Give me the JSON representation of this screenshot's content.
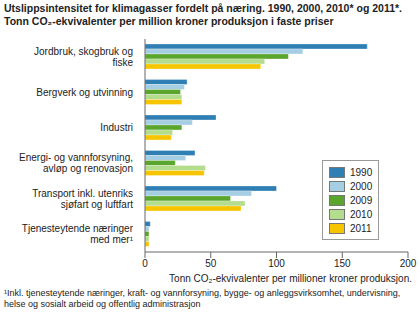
{
  "chart_data": {
    "type": "bar",
    "orientation": "horizontal",
    "title": "Utslippsintensitet for klimagasser fordelt på næring. 1990, 2000, 2010* og 2011*. Tonn CO₂-ekvivalenter per million kroner produksjon i faste priser",
    "x_label": "Tonn CO₂-ekvivalenter per millioner kroner produksjon.",
    "footnote": "¹Inkl. tjenesteytende næringer, kraft- og vannforsyning, bygge- og anleggsvirksomhet, undervisning, helse og sosialt arbeid og offentlig administrasjon",
    "categories": [
      "Jordbruk, skogbruk og fiske",
      "Bergverk og utvinning",
      "Industri",
      "Energi- og vannforsyning, avløp og renovasjon",
      "Transport inkl. utenriks sjøfart og luftfart",
      "Tjenesteytende næringer med mer¹"
    ],
    "series": [
      {
        "name": "1990",
        "color": "#2f7fb4",
        "values": [
          169,
          32,
          54,
          38,
          100,
          4
        ]
      },
      {
        "name": "2000",
        "color": "#a6cee3",
        "values": [
          120,
          30,
          36,
          31,
          81,
          3
        ]
      },
      {
        "name": "2009",
        "color": "#5aa52c",
        "values": [
          109,
          27,
          28,
          23,
          65,
          3
        ]
      },
      {
        "name": "2010",
        "color": "#b3dc8c",
        "values": [
          91,
          28,
          21,
          46,
          76,
          3
        ]
      },
      {
        "name": "2011",
        "color": "#f6c500",
        "values": [
          88,
          28,
          20,
          45,
          73,
          3
        ]
      }
    ],
    "xlim": [
      0,
      200
    ],
    "xticks": [
      0,
      50,
      100,
      150,
      200
    ],
    "grid": false,
    "legend": "right"
  }
}
